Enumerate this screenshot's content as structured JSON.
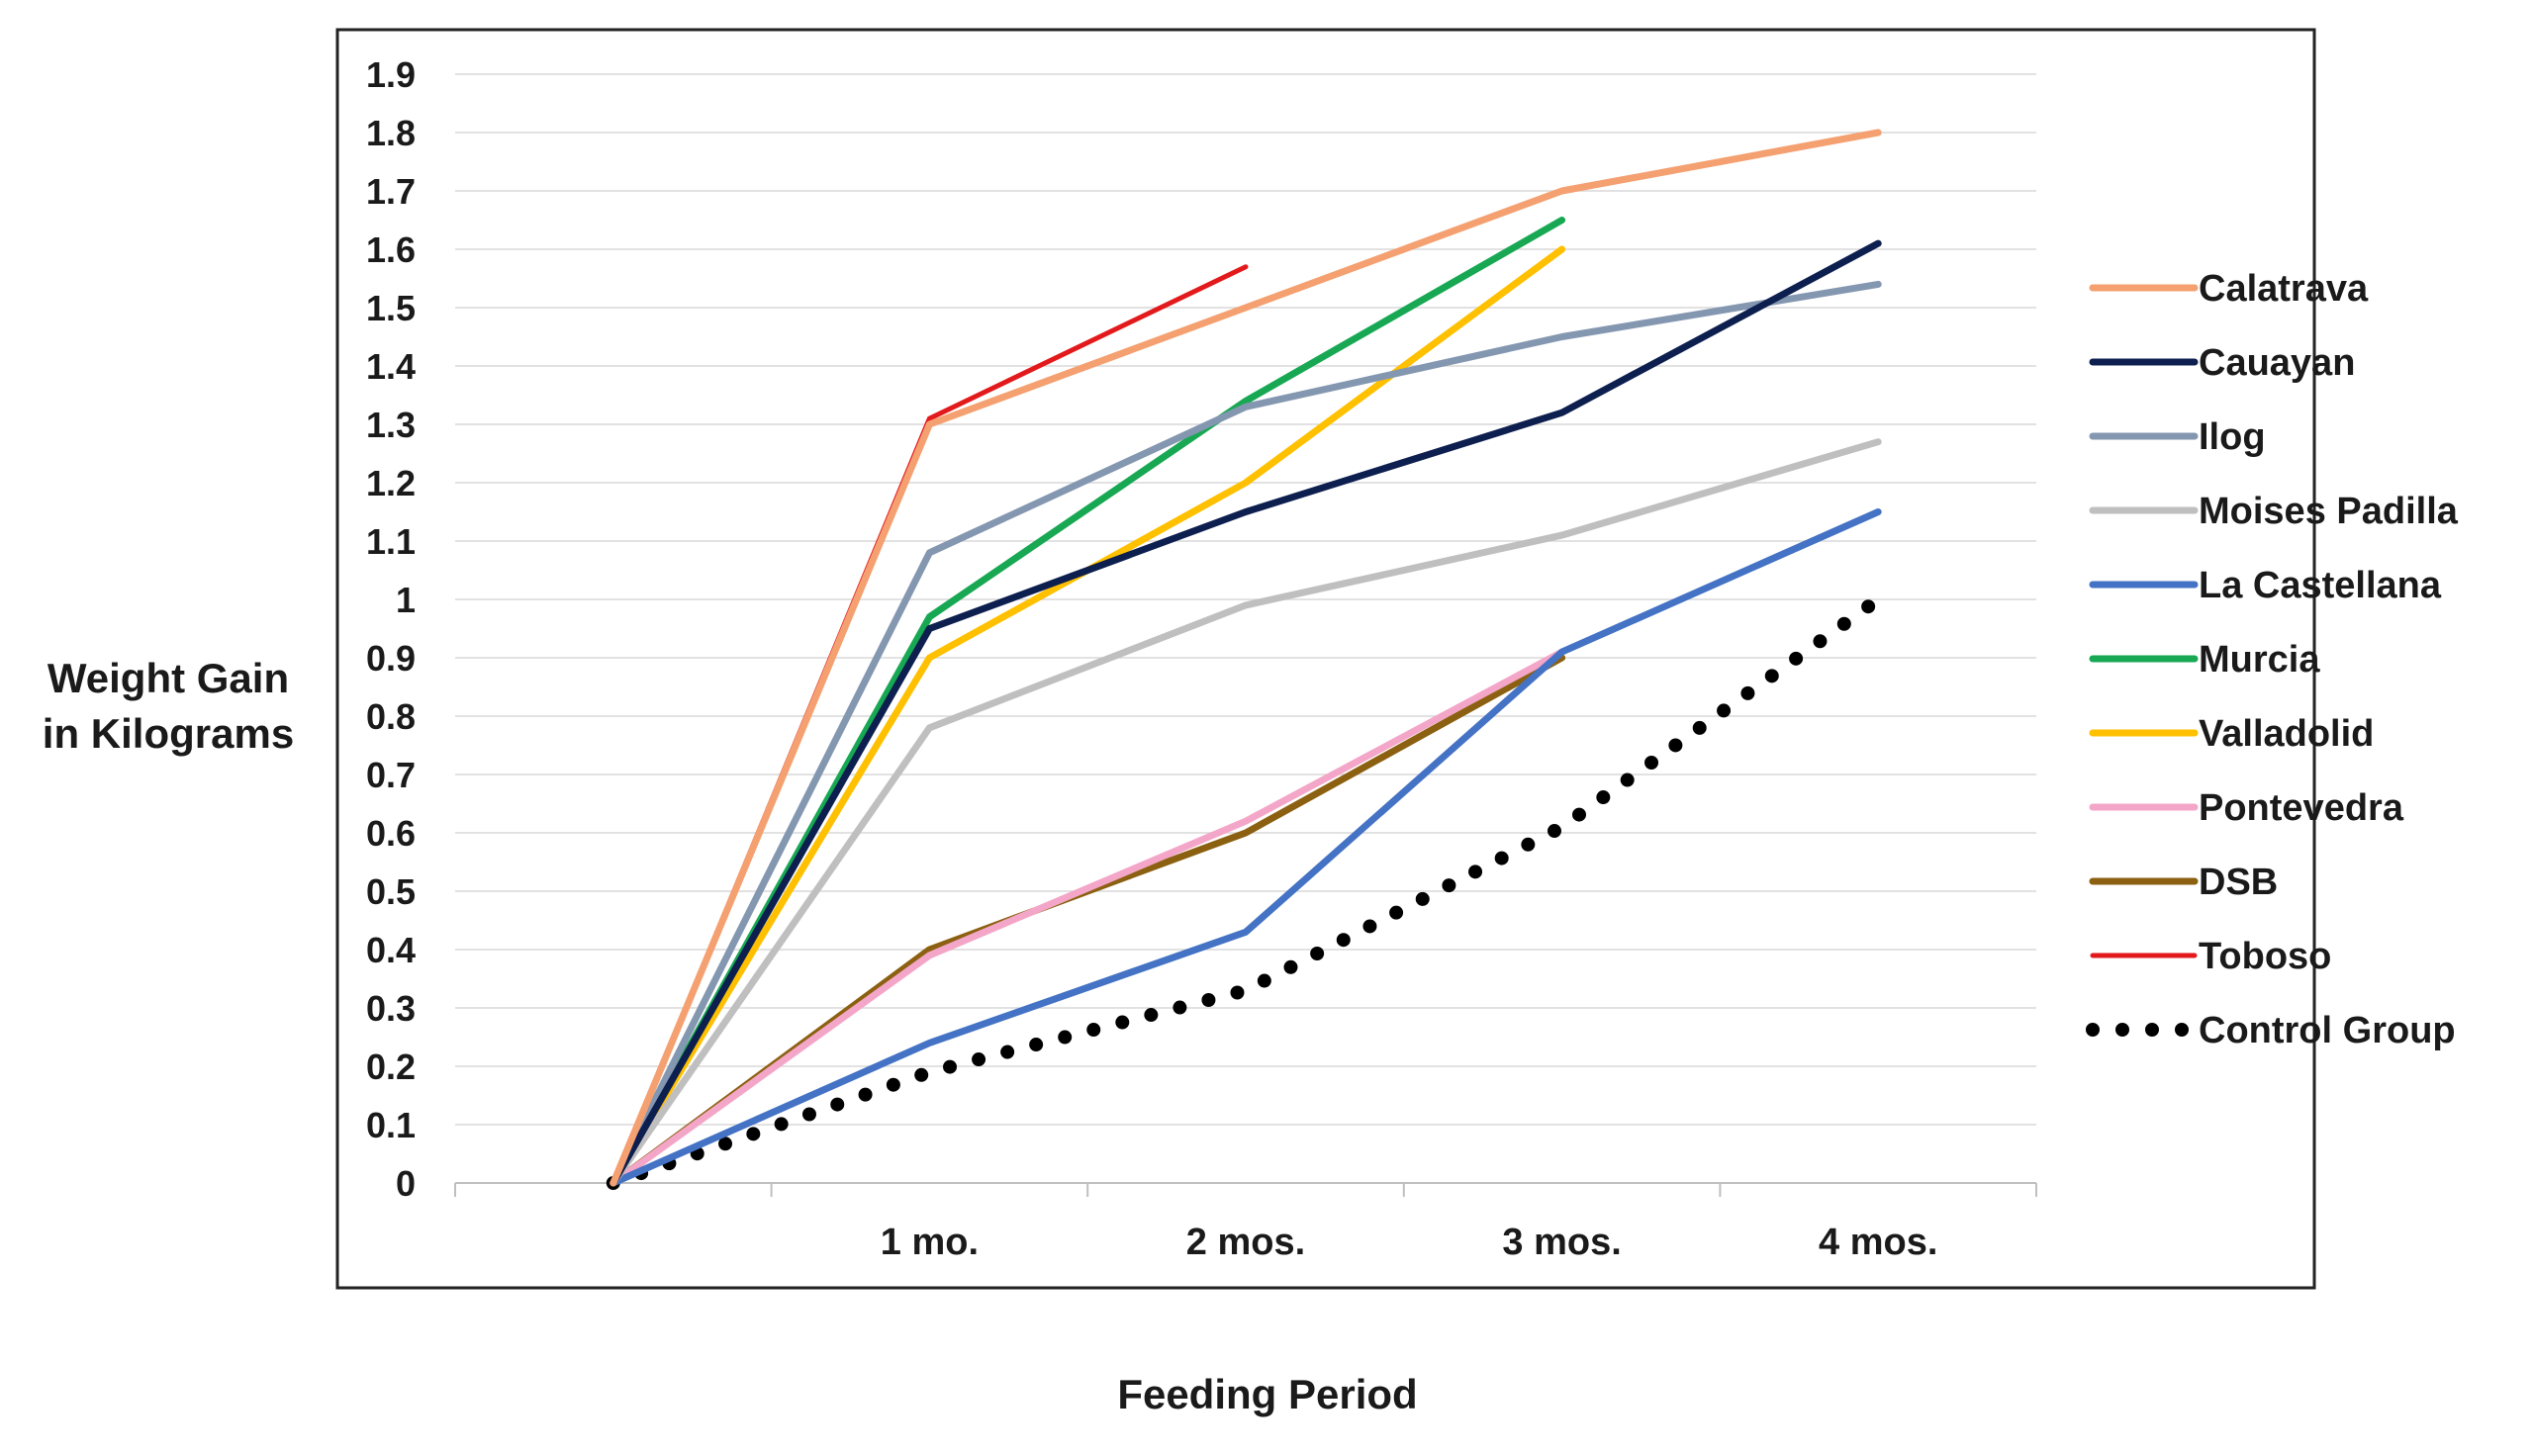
{
  "chart_data": {
    "type": "line",
    "title": "",
    "xlabel": "Feeding Period",
    "ylabel": [
      "Weight Gain",
      "in Kilograms"
    ],
    "categories": [
      "",
      "1 mo.",
      "2 mos.",
      "3 mos.",
      "4 mos."
    ],
    "ylim": [
      0,
      1.9
    ],
    "yticks": [
      "0",
      "0.1",
      "0.2",
      "0.3",
      "0.4",
      "0.5",
      "0.6",
      "0.7",
      "0.8",
      "0.9",
      "1",
      "1.1",
      "1.2",
      "1.3",
      "1.4",
      "1.5",
      "1.6",
      "1.7",
      "1.8",
      "1.9"
    ],
    "grid": true,
    "legend_position": "right",
    "series": [
      {
        "name": "Calatrava",
        "color": "#F4A070",
        "style": "solid",
        "values": [
          0,
          1.3,
          1.5,
          1.7,
          1.8
        ]
      },
      {
        "name": "Cauayan",
        "color": "#0D1F4F",
        "style": "solid",
        "values": [
          0,
          0.95,
          1.15,
          1.32,
          1.61
        ]
      },
      {
        "name": "Ilog",
        "color": "#8497B0",
        "style": "solid",
        "values": [
          0,
          1.08,
          1.33,
          1.45,
          1.54
        ]
      },
      {
        "name": "Moises Padilla",
        "color": "#BFBFBF",
        "style": "solid",
        "values": [
          0,
          0.78,
          0.99,
          1.11,
          1.27
        ]
      },
      {
        "name": "La Castellana",
        "color": "#4472C4",
        "style": "solid",
        "values": [
          0,
          0.24,
          0.43,
          0.91,
          1.15
        ]
      },
      {
        "name": "Murcia",
        "color": "#18A853",
        "style": "solid",
        "values": [
          0,
          0.97,
          1.34,
          1.65,
          null
        ]
      },
      {
        "name": "Valladolid",
        "color": "#FFC000",
        "style": "solid",
        "values": [
          0,
          0.9,
          1.2,
          1.6,
          null
        ]
      },
      {
        "name": "Pontevedra",
        "color": "#F4A6C8",
        "style": "solid",
        "values": [
          0,
          0.39,
          0.62,
          0.91,
          null
        ]
      },
      {
        "name": "DSB",
        "color": "#8B6010",
        "style": "solid",
        "values": [
          0,
          0.4,
          0.6,
          0.9,
          null
        ]
      },
      {
        "name": "Toboso",
        "color": "#E31A1C",
        "style": "solid",
        "values": [
          0,
          1.31,
          1.57,
          null,
          null
        ]
      },
      {
        "name": "Control Group",
        "color": "#000000",
        "style": "dotted",
        "values": [
          0,
          0.19,
          0.33,
          0.61,
          1.0
        ]
      }
    ]
  }
}
